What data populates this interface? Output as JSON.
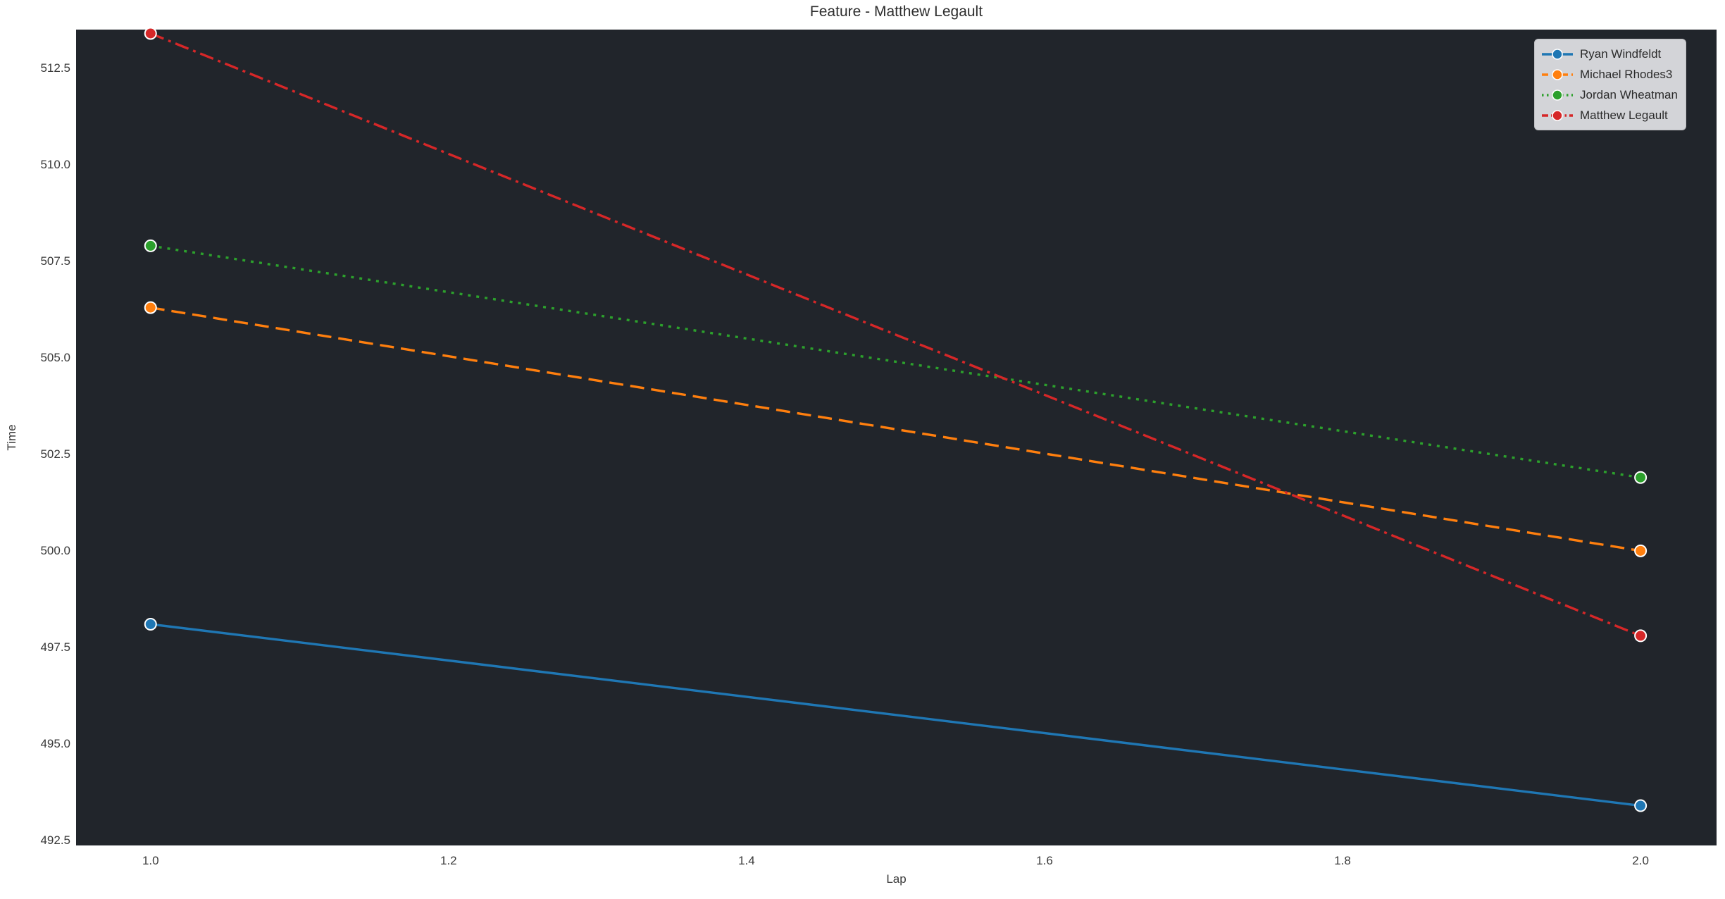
{
  "chart_data": {
    "type": "line",
    "title": "Feature - Matthew Legault",
    "xlabel": "Lap",
    "ylabel": "Time",
    "xlim": [
      0.95,
      2.051
    ],
    "ylim": [
      492.37,
      513.5
    ],
    "grid": false,
    "legend_position": "upper right",
    "xticks": [
      "1.0",
      "1.2",
      "1.4",
      "1.6",
      "1.8",
      "2.0"
    ],
    "xtick_values": [
      1.0,
      1.2,
      1.4,
      1.6,
      1.8,
      2.0
    ],
    "yticks": [
      "492.5",
      "495.0",
      "497.5",
      "500.0",
      "502.5",
      "505.0",
      "507.5",
      "510.0",
      "512.5"
    ],
    "ytick_values": [
      492.5,
      495.0,
      497.5,
      500.0,
      502.5,
      505.0,
      507.5,
      510.0,
      512.5
    ],
    "x": [
      1,
      2
    ],
    "series": [
      {
        "name": "Ryan Windfeldt",
        "color": "#1f77b4",
        "linestyle": "solid",
        "values": [
          498.1,
          493.4
        ]
      },
      {
        "name": "Michael Rhodes3",
        "color": "#ff7f0e",
        "linestyle": "dashed",
        "values": [
          506.3,
          500.0
        ]
      },
      {
        "name": "Jordan Wheatman",
        "color": "#2ca02c",
        "linestyle": "dotted",
        "values": [
          507.9,
          501.9
        ]
      },
      {
        "name": "Matthew Legault",
        "color": "#d62728",
        "linestyle": "dashdot",
        "values": [
          513.4,
          497.8
        ]
      }
    ],
    "colors": {
      "figure_bg": "#ffffff",
      "plot_bg": "#21252b",
      "title_text": "#2e2e2e",
      "tick_text": "#3a3a3a",
      "legend_bg": "#d3d4d8",
      "legend_border": "#bdbec2",
      "legend_text": "#2b2b2b",
      "marker_edge": "#ffffff"
    }
  }
}
